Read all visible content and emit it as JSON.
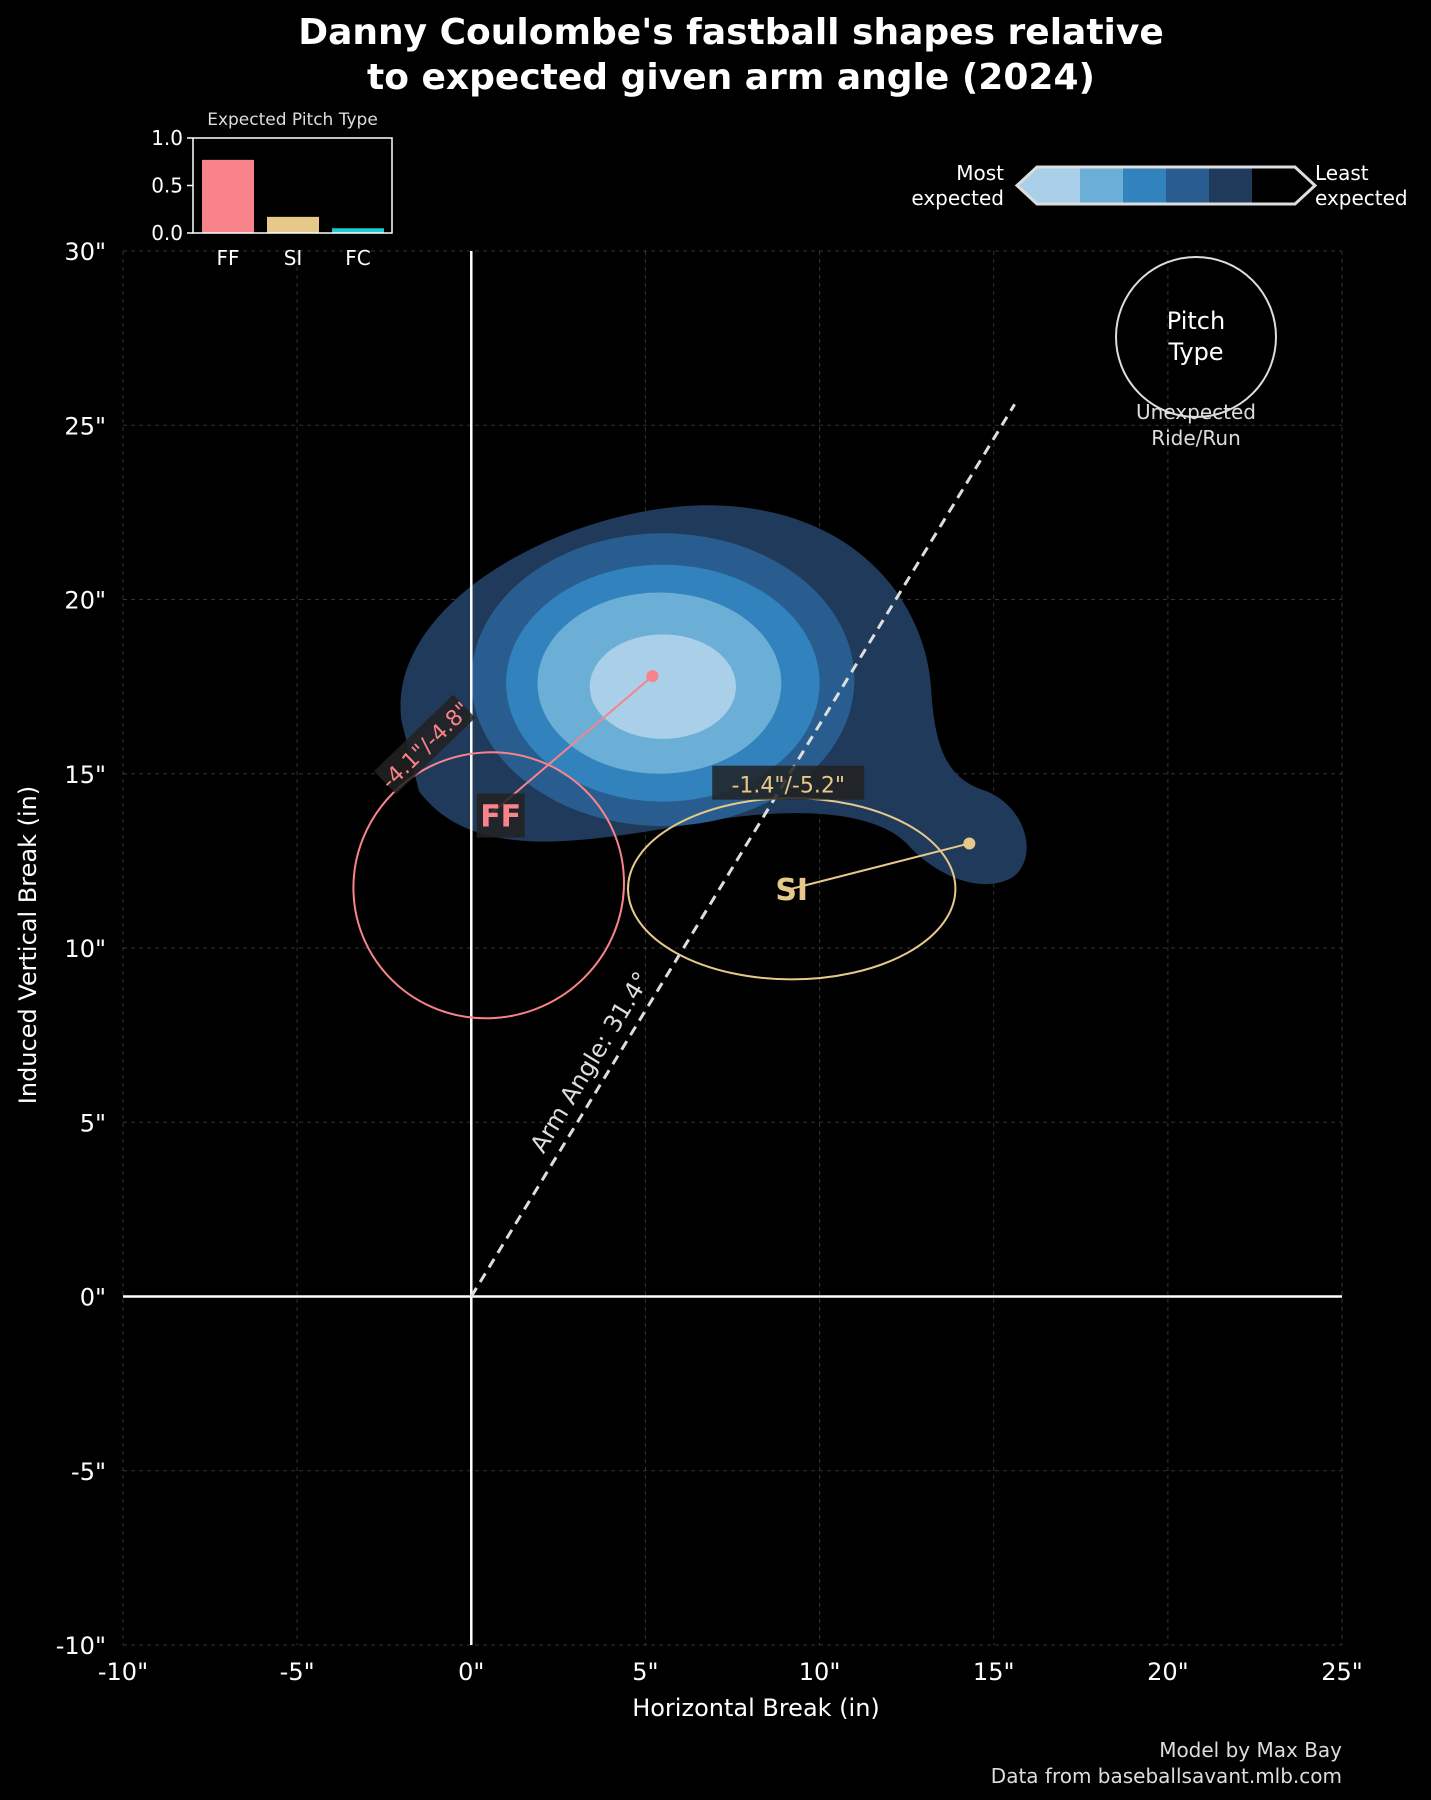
{
  "title_line1": "Danny Coulombe's fastball shapes relative",
  "title_line2": "to expected given arm angle (2024)",
  "footer": {
    "line1": "Model by Max Bay",
    "line2": "Data from baseballsavant.mlb.com"
  },
  "legend": {
    "most": [
      "Most",
      "expected"
    ],
    "least": [
      "Least",
      "expected"
    ],
    "colors": [
      "#a9d0e8",
      "#6baed6",
      "#3182bd",
      "#2a5d8f",
      "#1f3a5a",
      "#000000"
    ]
  },
  "key": {
    "circle": [
      "Pitch",
      "Type"
    ],
    "below": [
      "Unexpected",
      "Ride/Run"
    ]
  },
  "inset": {
    "title": "Expected Pitch Type",
    "categories": [
      "FF",
      "SI",
      "FC"
    ],
    "values": [
      0.77,
      0.17,
      0.05
    ],
    "colors": [
      "#f9838a",
      "#e6c98a",
      "#20c8d0"
    ],
    "ylim": [
      0,
      1.0
    ],
    "yticks": [
      "0.0",
      "0.5",
      "1.0"
    ]
  },
  "chart_data": {
    "type": "scatter",
    "title": "Danny Coulombe's fastball shapes relative to expected given arm angle (2024)",
    "xlabel": "Horizontal Break (in)",
    "ylabel": "Induced Vertical Break (in)",
    "xlim": [
      -10,
      25
    ],
    "ylim": [
      -10,
      30
    ],
    "xticks": [
      "-10\"",
      "-5\"",
      "0\"",
      "5\"",
      "10\"",
      "15\"",
      "20\"",
      "25\""
    ],
    "yticks": [
      "-10\"",
      "-5\"",
      "0\"",
      "5\"",
      "10\"",
      "15\"",
      "20\"",
      "25\"",
      "30\""
    ],
    "grid": true,
    "arm_angle": {
      "label": "Arm Angle: 31.4°",
      "degrees": 31.4,
      "x_end": 15.6,
      "y_end": 25.6
    },
    "expected_centers": [
      {
        "pitch": "FF",
        "x": 5.2,
        "y": 17.8
      },
      {
        "pitch": "SI",
        "x": 14.3,
        "y": 13.0
      }
    ],
    "pitches": [
      {
        "name": "FF",
        "label": "FF",
        "x": 0.5,
        "y": 13.8,
        "color": "#f9838a",
        "diff_label": "-4.1\"/-4.8\"",
        "ellipse": {
          "cx": 0.5,
          "cy": 11.8,
          "rx": 3.9,
          "ry": 3.8,
          "rot": -24
        }
      },
      {
        "name": "SI",
        "label": "SI",
        "x": 9.2,
        "y": 11.7,
        "color": "#e6c98a",
        "diff_label": "-1.4\"/-5.2\"",
        "ellipse": {
          "cx": 9.2,
          "cy": 11.7,
          "rx": 4.7,
          "ry": 2.6,
          "rot": 0
        }
      }
    ]
  }
}
